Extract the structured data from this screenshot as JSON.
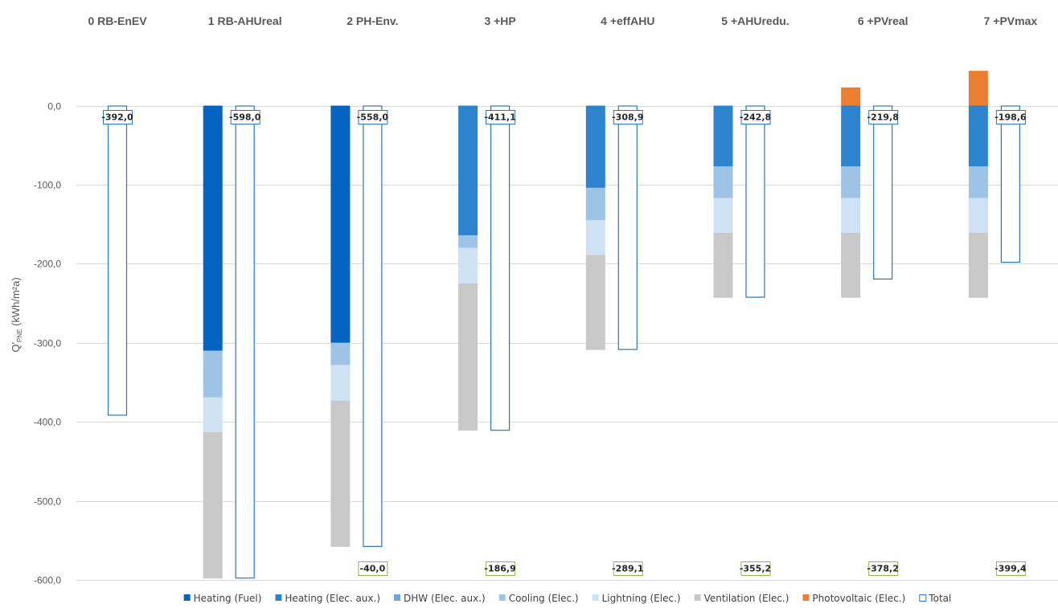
{
  "chart_data": {
    "type": "bar",
    "stacked": true,
    "categories": [
      "0 RB-EnEV",
      "1 RB-AHUreal",
      "2 PH-Env.",
      "3 +HP",
      "4 +effAHU",
      "5 +AHUredu.",
      "6 +PVreal",
      "7 +PVmax"
    ],
    "ylabel": "Q'",
    "ylabel_sub": "PNE",
    "ylabel_unit": " (kWh/m²a)",
    "ylim": [
      -600,
      50
    ],
    "yticks": [
      0,
      -100,
      -200,
      -300,
      -400,
      -500,
      -600
    ],
    "ytick_labels": [
      "0,0",
      "-100,0",
      "-200,0",
      "-300,0",
      "-400,0",
      "-500,0",
      "-600,0"
    ],
    "grid": true,
    "legend_position": "bottom",
    "series": [
      {
        "name": "Heating (Fuel)",
        "color": "#0563c1",
        "values": [
          0,
          -310,
          -300,
          0,
          0,
          0,
          0,
          0
        ]
      },
      {
        "name": "Heating (Elec. aux.)",
        "color": "#2e83cf",
        "values": [
          0,
          0,
          0,
          -164,
          -104,
          -77,
          -77,
          -77
        ]
      },
      {
        "name": "DHW (Elec. aux.)",
        "color": "#6fa5dc",
        "values": [
          0,
          0,
          0,
          0,
          0,
          0,
          0,
          0
        ]
      },
      {
        "name": "Cooling (Elec.)",
        "color": "#9dc3e6",
        "values": [
          0,
          -59,
          -28,
          -16,
          -41,
          -40,
          -40,
          -40
        ]
      },
      {
        "name": "Lightning (Elec.)",
        "color": "#cfe1f4",
        "values": [
          0,
          -44,
          -45,
          -45,
          -44,
          -44,
          -44,
          -44
        ]
      },
      {
        "name": "Ventilation (Elec.)",
        "color": "#c8c8c8",
        "values": [
          0,
          -185,
          -185,
          -186,
          -120,
          -82,
          -82,
          -82
        ]
      },
      {
        "name": "Photovoltaic (Elec.)",
        "color": "#ed7d31",
        "values": [
          0,
          0,
          0,
          0,
          0,
          0,
          23,
          44
        ]
      }
    ],
    "total": {
      "name": "Total",
      "color": "#2e75b6",
      "values": [
        -392.0,
        -598.0,
        -558.0,
        -411.1,
        -308.9,
        -242.8,
        -219.8,
        -198.6
      ],
      "labels": [
        "-392,0",
        "-598,0",
        "-558,0",
        "-411,1",
        "-308,9",
        "-242,8",
        "-219,8",
        "-198,6"
      ]
    },
    "difference": {
      "color": "#8fb646",
      "labels": [
        "",
        "",
        "-40,0",
        "-186,9",
        "-289,1",
        "-355,2",
        "-378,2",
        "-399,4"
      ]
    }
  }
}
